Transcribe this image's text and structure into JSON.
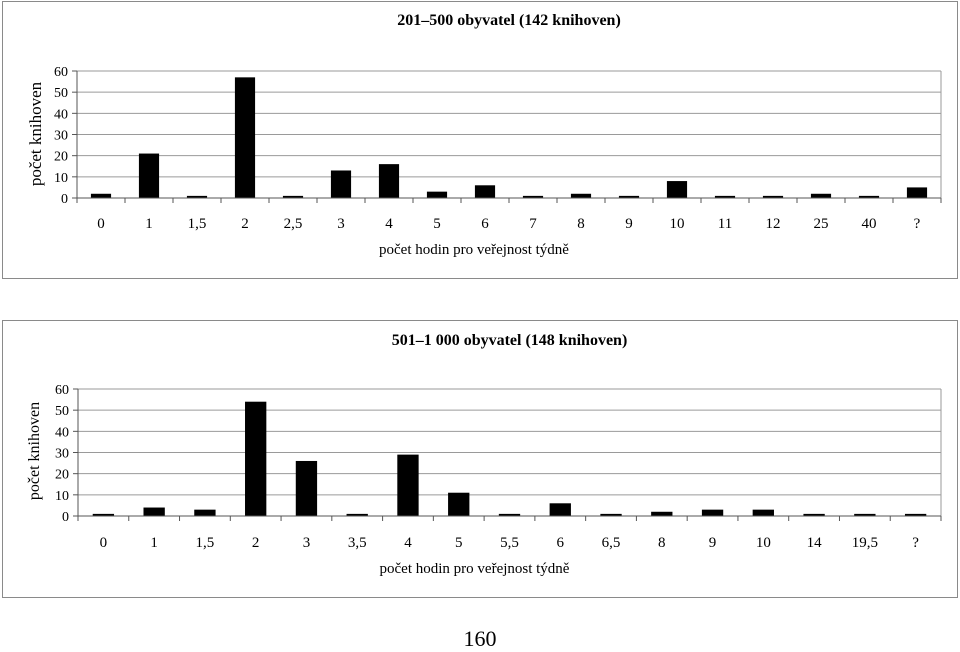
{
  "page_number": "160",
  "chart_data": [
    {
      "type": "bar",
      "title": "201–500 obyvatel (142 knihoven)",
      "xlabel": "počet hodin pro veřejnost týdně",
      "ylabel": "počet knihoven",
      "categories": [
        "0",
        "1",
        "1,5",
        "2",
        "2,5",
        "3",
        "4",
        "5",
        "6",
        "7",
        "8",
        "9",
        "10",
        "11",
        "12",
        "25",
        "40",
        "?"
      ],
      "values": [
        2,
        21,
        1,
        57,
        1,
        13,
        16,
        3,
        6,
        1,
        2,
        1,
        8,
        1,
        1,
        2,
        1,
        5
      ],
      "ylim": [
        0,
        60
      ],
      "yticks": [
        "0",
        "10",
        "20",
        "30",
        "40",
        "50",
        "60"
      ],
      "grid": true,
      "bar_color": "#000000"
    },
    {
      "type": "bar",
      "title": "501–1 000 obyvatel (148 knihoven)",
      "xlabel": "počet hodin pro veřejnost týdně",
      "ylabel": "počet knihoven",
      "categories": [
        "0",
        "1",
        "1,5",
        "2",
        "3",
        "3,5",
        "4",
        "5",
        "5,5",
        "6",
        "6,5",
        "8",
        "9",
        "10",
        "14",
        "19,5",
        "?"
      ],
      "values": [
        1,
        4,
        3,
        54,
        26,
        1,
        29,
        11,
        1,
        6,
        1,
        2,
        3,
        3,
        1,
        1,
        1
      ],
      "ylim": [
        0,
        60
      ],
      "yticks": [
        "0",
        "10",
        "20",
        "30",
        "40",
        "50",
        "60"
      ],
      "grid": true,
      "bar_color": "#000000"
    }
  ]
}
